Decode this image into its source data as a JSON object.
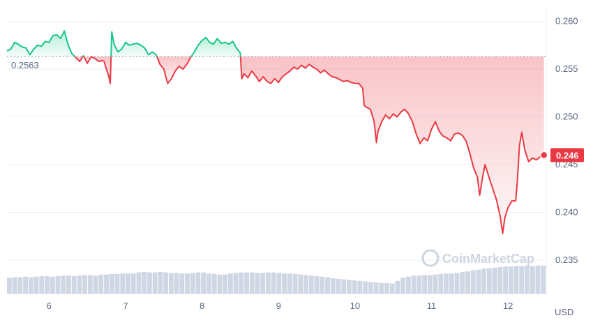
{
  "chart_data": {
    "type": "area",
    "currency_label": "USD",
    "reference_value": 0.2563,
    "reference_label": "0.2563",
    "current_value": 0.246,
    "current_label": "0.246",
    "watermark": "CoinMarketCap",
    "ylim": [
      0.2315,
      0.2615
    ],
    "y_ticks": [
      {
        "value": 0.235,
        "label": "0.235"
      },
      {
        "value": 0.24,
        "label": "0.240"
      },
      {
        "value": 0.245,
        "label": "0.245"
      },
      {
        "value": 0.25,
        "label": "0.250"
      },
      {
        "value": 0.255,
        "label": "0.255"
      },
      {
        "value": 0.26,
        "label": "0.260"
      }
    ],
    "x_range": [
      5.45,
      12.5
    ],
    "x_ticks": [
      {
        "value": 6,
        "label": "6"
      },
      {
        "value": 7,
        "label": "7"
      },
      {
        "value": 8,
        "label": "8"
      },
      {
        "value": 9,
        "label": "9"
      },
      {
        "value": 10,
        "label": "10"
      },
      {
        "value": 11,
        "label": "11"
      },
      {
        "value": 12,
        "label": "12"
      }
    ],
    "colors": {
      "up": "#16c784",
      "down": "#ea3943",
      "volume": "#cfd6e4",
      "grid": "#eff2f5"
    },
    "price_series": [
      [
        5.45,
        0.2569
      ],
      [
        5.5,
        0.2571
      ],
      [
        5.55,
        0.2578
      ],
      [
        5.6,
        0.2576
      ],
      [
        5.65,
        0.2573
      ],
      [
        5.7,
        0.2572
      ],
      [
        5.75,
        0.2565
      ],
      [
        5.8,
        0.2571
      ],
      [
        5.85,
        0.2575
      ],
      [
        5.9,
        0.2574
      ],
      [
        5.95,
        0.2579
      ],
      [
        6.0,
        0.2578
      ],
      [
        6.05,
        0.2585
      ],
      [
        6.1,
        0.2586
      ],
      [
        6.15,
        0.2582
      ],
      [
        6.2,
        0.259
      ],
      [
        6.25,
        0.2575
      ],
      [
        6.3,
        0.2566
      ],
      [
        6.35,
        0.2562
      ],
      [
        6.4,
        0.2558
      ],
      [
        6.45,
        0.2564
      ],
      [
        6.5,
        0.2556
      ],
      [
        6.55,
        0.2563
      ],
      [
        6.6,
        0.2561
      ],
      [
        6.65,
        0.2558
      ],
      [
        6.7,
        0.2559
      ],
      [
        6.72,
        0.2558
      ],
      [
        6.75,
        0.255
      ],
      [
        6.78,
        0.2543
      ],
      [
        6.8,
        0.2535
      ],
      [
        6.82,
        0.2589
      ],
      [
        6.85,
        0.2576
      ],
      [
        6.9,
        0.2568
      ],
      [
        6.95,
        0.2571
      ],
      [
        7.0,
        0.2578
      ],
      [
        7.05,
        0.2575
      ],
      [
        7.1,
        0.2576
      ],
      [
        7.15,
        0.2577
      ],
      [
        7.2,
        0.2575
      ],
      [
        7.25,
        0.2572
      ],
      [
        7.3,
        0.2565
      ],
      [
        7.35,
        0.2568
      ],
      [
        7.4,
        0.2565
      ],
      [
        7.45,
        0.2555
      ],
      [
        7.5,
        0.255
      ],
      [
        7.55,
        0.2535
      ],
      [
        7.6,
        0.254
      ],
      [
        7.65,
        0.2548
      ],
      [
        7.7,
        0.2553
      ],
      [
        7.75,
        0.255
      ],
      [
        7.8,
        0.2555
      ],
      [
        7.85,
        0.2562
      ],
      [
        7.9,
        0.2568
      ],
      [
        7.95,
        0.2575
      ],
      [
        8.0,
        0.258
      ],
      [
        8.05,
        0.2583
      ],
      [
        8.1,
        0.2578
      ],
      [
        8.15,
        0.2576
      ],
      [
        8.2,
        0.2582
      ],
      [
        8.25,
        0.2577
      ],
      [
        8.3,
        0.2578
      ],
      [
        8.35,
        0.2576
      ],
      [
        8.4,
        0.2579
      ],
      [
        8.45,
        0.2572
      ],
      [
        8.5,
        0.2567
      ],
      [
        8.52,
        0.254
      ],
      [
        8.55,
        0.2545
      ],
      [
        8.6,
        0.2541
      ],
      [
        8.65,
        0.2548
      ],
      [
        8.7,
        0.2543
      ],
      [
        8.75,
        0.2537
      ],
      [
        8.8,
        0.2542
      ],
      [
        8.85,
        0.2537
      ],
      [
        8.9,
        0.2535
      ],
      [
        8.95,
        0.254
      ],
      [
        9.0,
        0.2536
      ],
      [
        9.05,
        0.2542
      ],
      [
        9.1,
        0.2545
      ],
      [
        9.15,
        0.2548
      ],
      [
        9.2,
        0.2552
      ],
      [
        9.25,
        0.255
      ],
      [
        9.3,
        0.2554
      ],
      [
        9.35,
        0.2551
      ],
      [
        9.4,
        0.2555
      ],
      [
        9.45,
        0.2552
      ],
      [
        9.5,
        0.255
      ],
      [
        9.55,
        0.2546
      ],
      [
        9.6,
        0.2549
      ],
      [
        9.65,
        0.2545
      ],
      [
        9.7,
        0.2542
      ],
      [
        9.75,
        0.2541
      ],
      [
        9.8,
        0.2539
      ],
      [
        9.85,
        0.2537
      ],
      [
        9.9,
        0.2538
      ],
      [
        9.95,
        0.2536
      ],
      [
        10.0,
        0.2535
      ],
      [
        10.05,
        0.2535
      ],
      [
        10.1,
        0.253
      ],
      [
        10.12,
        0.2512
      ],
      [
        10.15,
        0.251
      ],
      [
        10.2,
        0.2508
      ],
      [
        10.25,
        0.2495
      ],
      [
        10.28,
        0.2473
      ],
      [
        10.3,
        0.2485
      ],
      [
        10.35,
        0.2495
      ],
      [
        10.4,
        0.2502
      ],
      [
        10.45,
        0.2498
      ],
      [
        10.5,
        0.2503
      ],
      [
        10.55,
        0.25
      ],
      [
        10.6,
        0.2505
      ],
      [
        10.65,
        0.2508
      ],
      [
        10.7,
        0.2503
      ],
      [
        10.75,
        0.2495
      ],
      [
        10.8,
        0.2482
      ],
      [
        10.85,
        0.2472
      ],
      [
        10.9,
        0.2478
      ],
      [
        10.95,
        0.2475
      ],
      [
        11.0,
        0.2487
      ],
      [
        11.05,
        0.2495
      ],
      [
        11.1,
        0.2485
      ],
      [
        11.15,
        0.248
      ],
      [
        11.2,
        0.2478
      ],
      [
        11.25,
        0.2475
      ],
      [
        11.3,
        0.2482
      ],
      [
        11.35,
        0.2483
      ],
      [
        11.4,
        0.2481
      ],
      [
        11.45,
        0.2475
      ],
      [
        11.5,
        0.2462
      ],
      [
        11.55,
        0.2447
      ],
      [
        11.6,
        0.2437
      ],
      [
        11.63,
        0.2418
      ],
      [
        11.67,
        0.2438
      ],
      [
        11.7,
        0.245
      ],
      [
        11.75,
        0.2437
      ],
      [
        11.8,
        0.2425
      ],
      [
        11.85,
        0.2413
      ],
      [
        11.9,
        0.2395
      ],
      [
        11.93,
        0.2378
      ],
      [
        11.96,
        0.2395
      ],
      [
        12.0,
        0.2405
      ],
      [
        12.05,
        0.2412
      ],
      [
        12.1,
        0.2412
      ],
      [
        12.12,
        0.243
      ],
      [
        12.15,
        0.247
      ],
      [
        12.18,
        0.2484
      ],
      [
        12.22,
        0.2465
      ],
      [
        12.27,
        0.2453
      ],
      [
        12.32,
        0.2457
      ],
      [
        12.37,
        0.2455
      ],
      [
        12.42,
        0.2458
      ],
      [
        12.47,
        0.246
      ]
    ],
    "volume": [
      0.3,
      0.31,
      0.31,
      0.32,
      0.31,
      0.32,
      0.33,
      0.33,
      0.32,
      0.33,
      0.34,
      0.34,
      0.33,
      0.34,
      0.35,
      0.35,
      0.34,
      0.36,
      0.36,
      0.37,
      0.37,
      0.38,
      0.38,
      0.38,
      0.4,
      0.41,
      0.4,
      0.4,
      0.41,
      0.4,
      0.39,
      0.39,
      0.38,
      0.38,
      0.39,
      0.4,
      0.4,
      0.38,
      0.37,
      0.36,
      0.36,
      0.38,
      0.39,
      0.4,
      0.4,
      0.4,
      0.39,
      0.39,
      0.4,
      0.4,
      0.39,
      0.38,
      0.38,
      0.37,
      0.36,
      0.35,
      0.34,
      0.33,
      0.32,
      0.31,
      0.29,
      0.28,
      0.27,
      0.26,
      0.25,
      0.24,
      0.23,
      0.22,
      0.21,
      0.2,
      0.2,
      0.19,
      0.24,
      0.3,
      0.32,
      0.34,
      0.34,
      0.35,
      0.35,
      0.36,
      0.37,
      0.38,
      0.38,
      0.39,
      0.41,
      0.42,
      0.44,
      0.45,
      0.47,
      0.48,
      0.49,
      0.5,
      0.51,
      0.51,
      0.52,
      0.52,
      0.53,
      0.52,
      0.53,
      0.53
    ]
  }
}
